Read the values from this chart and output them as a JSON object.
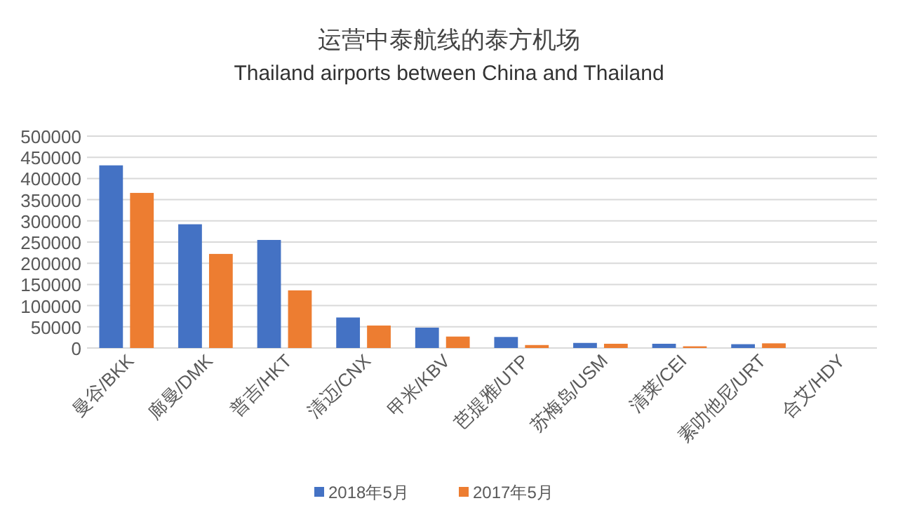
{
  "chart_data": {
    "type": "bar",
    "title": "运营中泰航线的泰方机场",
    "subtitle": "Thailand airports between China and Thailand",
    "categories": [
      "曼谷/BKK",
      "廊曼/DMK",
      "普吉/HKT",
      "清迈/CNX",
      "甲米/KBV",
      "芭提雅/UTP",
      "苏梅岛/USM",
      "清莱/CEI",
      "素叻他尼/URT",
      "合艾/HDY"
    ],
    "series": [
      {
        "name": "2018年5月",
        "color": "#4472c4",
        "values": [
          431000,
          292000,
          255000,
          72000,
          48000,
          26000,
          12000,
          10000,
          9000,
          0
        ]
      },
      {
        "name": "2017年5月",
        "color": "#ed7d31",
        "values": [
          366000,
          222000,
          136000,
          53000,
          27000,
          7000,
          10000,
          4000,
          11000,
          0
        ]
      }
    ],
    "ylim": [
      0,
      500000
    ],
    "yticks": [
      0,
      50000,
      100000,
      150000,
      200000,
      250000,
      300000,
      350000,
      400000,
      450000,
      500000
    ],
    "grid": "y",
    "legend": "bottom"
  }
}
